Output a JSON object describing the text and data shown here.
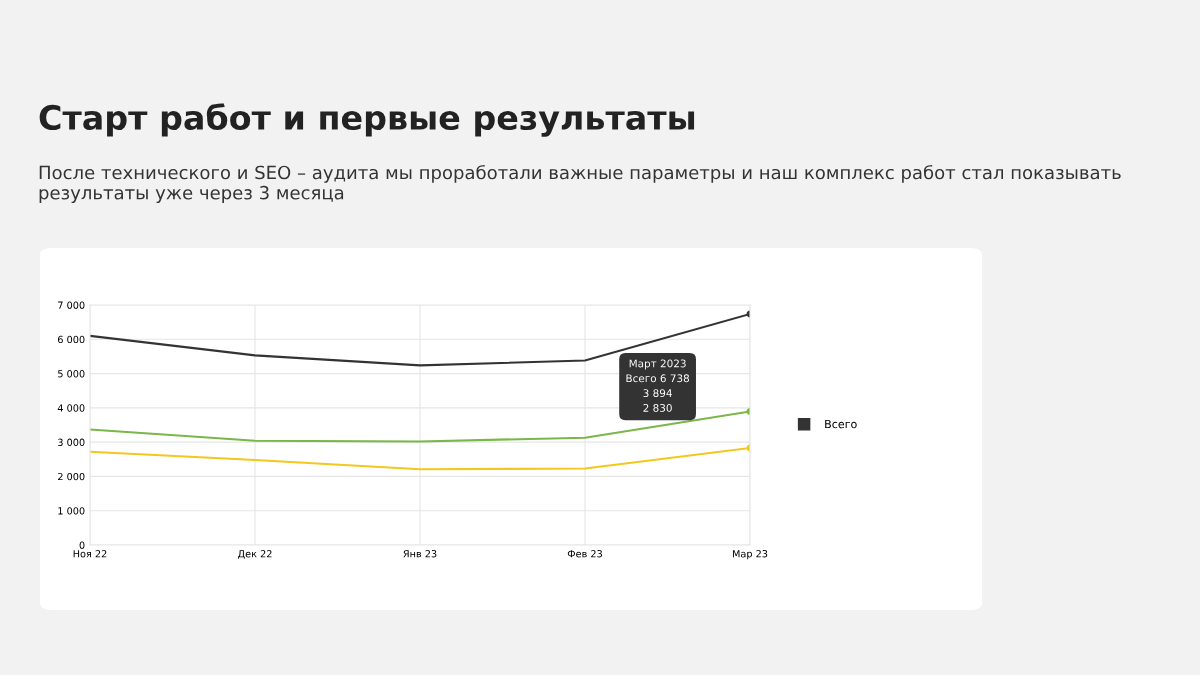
{
  "chart_data": {
    "type": "line",
    "title": "Старт работ и первые результаты",
    "subtitle": "После технического и SEO – аудита мы проработали важные параметры и наш комплекс работ стал показывать результаты уже через 3 месяца",
    "categories": [
      "Ноя 22",
      "Дек 22",
      "Янв 23",
      "Фев 23",
      "Мар 23"
    ],
    "series": [
      {
        "color": "#7ab648",
        "values": [
          3370,
          3040,
          3020,
          3130,
          3894
        ]
      },
      {
        "color": "#f2c81e",
        "values": [
          2720,
          2480,
          2210,
          2230,
          2830
        ]
      },
      {
        "name": "Всего",
        "color": "#333333",
        "values": [
          6100,
          5530,
          5240,
          5380,
          6738
        ]
      }
    ],
    "ylim": [
      0,
      7000
    ],
    "yticks": [
      0,
      {
        "value": 1000,
        "label": "1 000"
      },
      {
        "value": 2000,
        "label": "2 000"
      },
      {
        "value": 3000,
        "label": "3 000"
      },
      {
        "value": 4000,
        "label": "4 000"
      },
      {
        "value": 5000,
        "label": "5 000"
      },
      {
        "value": 6000,
        "label": "6 000"
      },
      {
        "value": 7000,
        "label": "7 000"
      }
    ],
    "annotations": [
      "Март 2023",
      "Всего 6 738",
      "3 894",
      "2 830"
    ],
    "grid": true,
    "legend": "right"
  }
}
